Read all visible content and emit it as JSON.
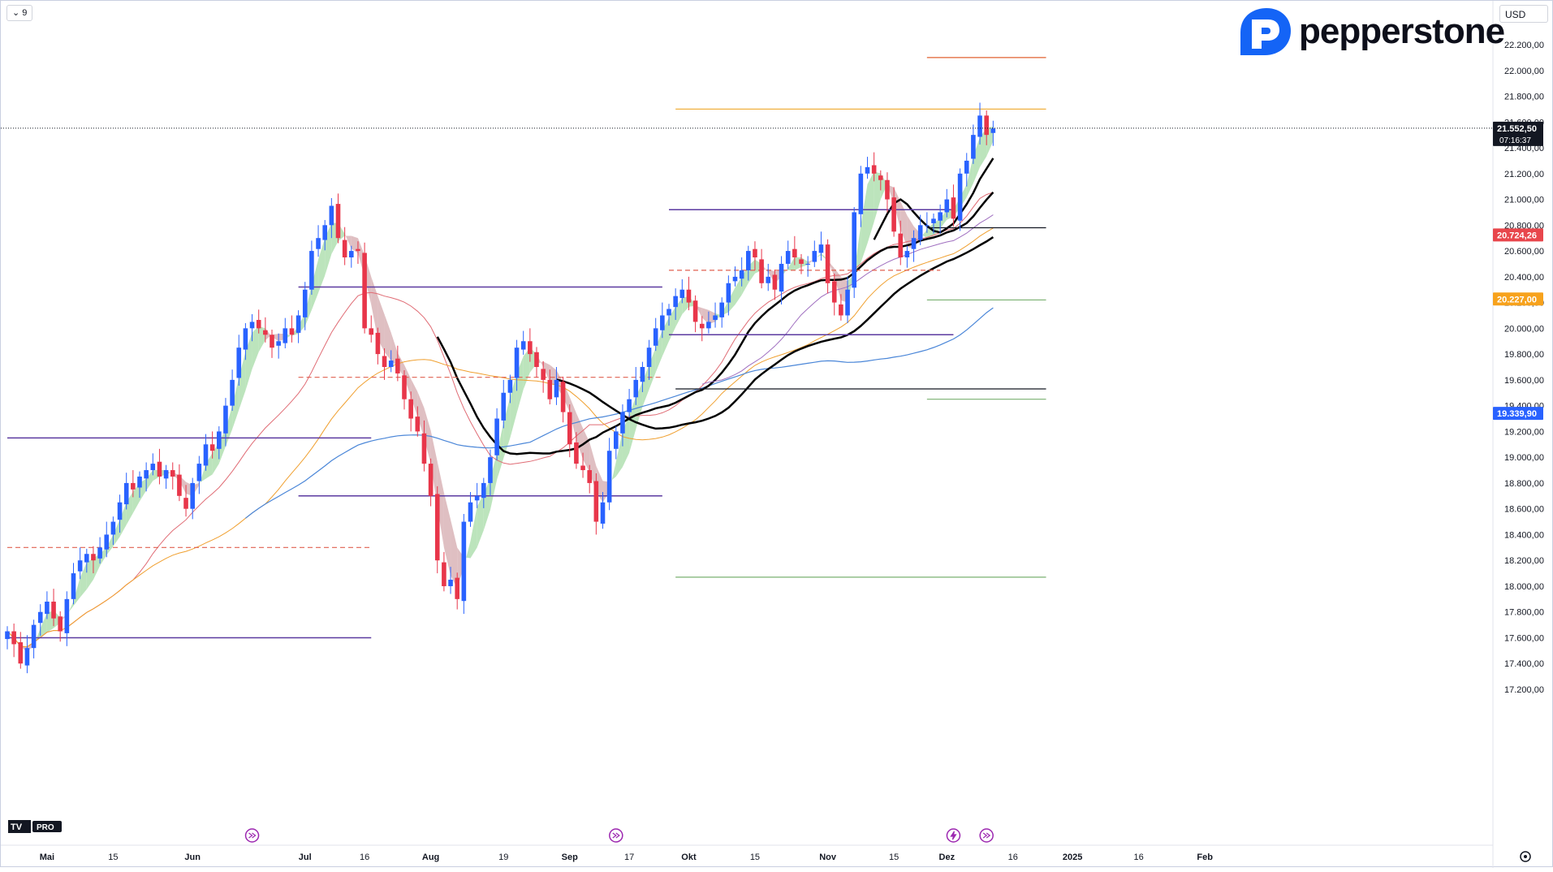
{
  "toolbar": {
    "interval_label": "9",
    "currency": "USD"
  },
  "brand": {
    "name": "pepperstone"
  },
  "badge": {
    "tv": "TV",
    "pro": "PRO"
  },
  "chart_data": {
    "type": "candlestick",
    "ylim": [
      17200,
      22400
    ],
    "y_ticks": [
      {
        "v": 17200,
        "label": "17.200,00"
      },
      {
        "v": 17400,
        "label": "17.400,00"
      },
      {
        "v": 17600,
        "label": "17.600,00"
      },
      {
        "v": 17800,
        "label": "17.800,00"
      },
      {
        "v": 18000,
        "label": "18.000,00"
      },
      {
        "v": 18200,
        "label": "18.200,00"
      },
      {
        "v": 18400,
        "label": "18.400,00"
      },
      {
        "v": 18600,
        "label": "18.600,00"
      },
      {
        "v": 18800,
        "label": "18.800,00"
      },
      {
        "v": 19000,
        "label": "19.000,00"
      },
      {
        "v": 19200,
        "label": "19.200,00"
      },
      {
        "v": 19400,
        "label": "19.400,00"
      },
      {
        "v": 19600,
        "label": "19.600,00"
      },
      {
        "v": 19800,
        "label": "19.800,00"
      },
      {
        "v": 20000,
        "label": "20.000,00"
      },
      {
        "v": 20200,
        "label": "20.200,00"
      },
      {
        "v": 20400,
        "label": "20.400,00"
      },
      {
        "v": 20600,
        "label": "20.600,00"
      },
      {
        "v": 20800,
        "label": "20.800,00"
      },
      {
        "v": 21000,
        "label": "21.000,00"
      },
      {
        "v": 21200,
        "label": "21.200,00"
      },
      {
        "v": 21400,
        "label": "21.400,00"
      },
      {
        "v": 21600,
        "label": "21.600,00"
      },
      {
        "v": 21800,
        "label": "21.800,00"
      },
      {
        "v": 22000,
        "label": "22.000,00"
      },
      {
        "v": 22200,
        "label": "22.200,00"
      }
    ],
    "x_ticks": [
      {
        "i": 6,
        "label": "Mai",
        "bold": true
      },
      {
        "i": 16,
        "label": "15",
        "bold": false
      },
      {
        "i": 28,
        "label": "Jun",
        "bold": true
      },
      {
        "i": 45,
        "label": "Jul",
        "bold": true
      },
      {
        "i": 54,
        "label": "16",
        "bold": false
      },
      {
        "i": 64,
        "label": "Aug",
        "bold": true
      },
      {
        "i": 75,
        "label": "19",
        "bold": false
      },
      {
        "i": 85,
        "label": "Sep",
        "bold": true
      },
      {
        "i": 94,
        "label": "17",
        "bold": false
      },
      {
        "i": 103,
        "label": "Okt",
        "bold": true
      },
      {
        "i": 113,
        "label": "15",
        "bold": false
      },
      {
        "i": 124,
        "label": "Nov",
        "bold": true
      },
      {
        "i": 134,
        "label": "15",
        "bold": false
      },
      {
        "i": 142,
        "label": "Dez",
        "bold": true
      },
      {
        "i": 152,
        "label": "16",
        "bold": false
      },
      {
        "i": 161,
        "label": "2025",
        "bold": true
      },
      {
        "i": 171,
        "label": "16",
        "bold": false
      },
      {
        "i": 181,
        "label": "Feb",
        "bold": true
      }
    ],
    "price_labels": [
      {
        "v": 21552.5,
        "label": "21.552,50",
        "sub": "07:16:37",
        "color": "#131722"
      },
      {
        "v": 20724.26,
        "label": "20.724,26",
        "sub": "",
        "color": "#e8464c"
      },
      {
        "v": 20227.0,
        "label": "20.227,00",
        "sub": "",
        "color": "#f7a21c"
      },
      {
        "v": 19339.9,
        "label": "19.339,90",
        "sub": "",
        "color": "#2962ff"
      }
    ],
    "closes": [
      17650,
      17550,
      17400,
      17520,
      17700,
      17800,
      17880,
      17750,
      17650,
      17900,
      18100,
      18200,
      18250,
      18200,
      18300,
      18400,
      18500,
      18650,
      18800,
      18750,
      18850,
      18900,
      18950,
      18850,
      18900,
      18850,
      18700,
      18600,
      18800,
      18950,
      19100,
      19050,
      19200,
      19400,
      19600,
      19850,
      20000,
      20050,
      20000,
      19950,
      19850,
      19900,
      20000,
      19950,
      20100,
      20300,
      20600,
      20700,
      20800,
      20950,
      20700,
      20550,
      20600,
      20600,
      20000,
      19950,
      19800,
      19700,
      19750,
      19650,
      19450,
      19300,
      19200,
      18950,
      18700,
      18200,
      18000,
      18050,
      17900,
      18500,
      18650,
      18700,
      18800,
      19000,
      19300,
      19500,
      19600,
      19850,
      19900,
      19800,
      19700,
      19600,
      19450,
      19600,
      19350,
      19100,
      18950,
      18900,
      18800,
      18500,
      18650,
      19050,
      19200,
      19350,
      19450,
      19600,
      19700,
      19850,
      20000,
      20100,
      20150,
      20250,
      20300,
      20200,
      20050,
      20000,
      20050,
      20100,
      20200,
      20350,
      20400,
      20450,
      20600,
      20550,
      20350,
      20400,
      20300,
      20500,
      20600,
      20550,
      20500,
      20500,
      20600,
      20650,
      20350,
      20200,
      20100,
      20300,
      20900,
      21200,
      21250,
      21200,
      21150,
      21000,
      20750,
      20550,
      20600,
      20700,
      20800,
      20800,
      20850,
      20900,
      21000,
      20850,
      21200,
      21300,
      21500,
      21650,
      21500,
      21550
    ]
  }
}
